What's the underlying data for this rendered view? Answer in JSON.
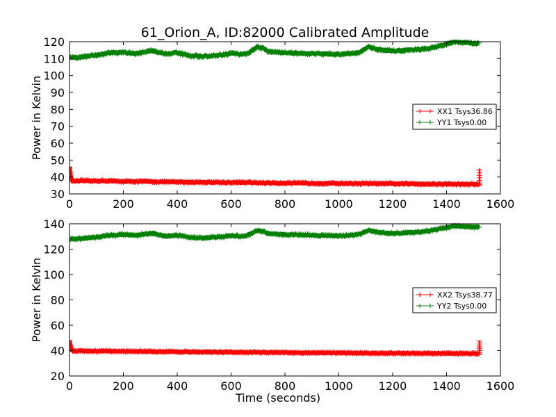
{
  "title": "61_Orion_A, ID:82000 Calibrated Amplitude",
  "colors": {
    "xx": "#ff0000",
    "yy": "#008000",
    "axis": "#000000"
  },
  "chart_data": [
    {
      "type": "line",
      "title": "61_Orion_A, ID:82000 Calibrated Amplitude",
      "xlabel": "",
      "ylabel": "Power in Kelvin",
      "xlim": [
        0,
        1600
      ],
      "ylim": [
        30,
        120
      ],
      "xticks": [
        "0",
        "200",
        "400",
        "600",
        "800",
        "1000",
        "1200",
        "1400",
        "1600"
      ],
      "yticks": [
        "30",
        "40",
        "50",
        "60",
        "70",
        "80",
        "90",
        "100",
        "110",
        "120"
      ],
      "grid": false,
      "legend_position": "center-right",
      "series": [
        {
          "name": "XX1 Tsys36.86",
          "color": "#ff0000",
          "marker": "+",
          "points": [
            [
              0,
              46
            ],
            [
              10,
              37.5
            ],
            [
              40,
              37.8
            ],
            [
              80,
              37.6
            ],
            [
              120,
              37.8
            ],
            [
              200,
              37.4
            ],
            [
              300,
              37.3
            ],
            [
              400,
              37
            ],
            [
              500,
              36.9
            ],
            [
              600,
              36.8
            ],
            [
              700,
              36.6
            ],
            [
              800,
              36.4
            ],
            [
              900,
              36.3
            ],
            [
              1000,
              36.2
            ],
            [
              1100,
              36.1
            ],
            [
              1200,
              36
            ],
            [
              1300,
              35.9
            ],
            [
              1400,
              35.8
            ],
            [
              1500,
              35.7
            ],
            [
              1520,
              35.7
            ]
          ],
          "end_spike": [
            1522,
            35,
            45
          ]
        },
        {
          "name": "YY1 Tsys0.00",
          "color": "#008000",
          "marker": "+",
          "points": [
            [
              0,
              110.5
            ],
            [
              50,
              111
            ],
            [
              100,
              112
            ],
            [
              150,
              113.5
            ],
            [
              200,
              113.5
            ],
            [
              250,
              113
            ],
            [
              280,
              114
            ],
            [
              310,
              114.5
            ],
            [
              350,
              113
            ],
            [
              400,
              113.5
            ],
            [
              450,
              111.5
            ],
            [
              500,
              111.5
            ],
            [
              550,
              112
            ],
            [
              600,
              113
            ],
            [
              620,
              113
            ],
            [
              640,
              112.5
            ],
            [
              660,
              113
            ],
            [
              680,
              115
            ],
            [
              700,
              117
            ],
            [
              720,
              116
            ],
            [
              740,
              114
            ],
            [
              800,
              113.5
            ],
            [
              900,
              113
            ],
            [
              1000,
              112.5
            ],
            [
              1050,
              113
            ],
            [
              1080,
              114
            ],
            [
              1100,
              116
            ],
            [
              1110,
              117
            ],
            [
              1140,
              115.5
            ],
            [
              1200,
              114.5
            ],
            [
              1300,
              115.5
            ],
            [
              1350,
              116.5
            ],
            [
              1400,
              118.5
            ],
            [
              1430,
              120
            ],
            [
              1460,
              119.5
            ],
            [
              1500,
              119
            ],
            [
              1520,
              118.8
            ]
          ]
        }
      ]
    },
    {
      "type": "line",
      "title": "",
      "xlabel": "Time (seconds)",
      "ylabel": "Power in Kelvin",
      "xlim": [
        0,
        1600
      ],
      "ylim": [
        20,
        140
      ],
      "xticks": [
        "0",
        "200",
        "400",
        "600",
        "800",
        "1000",
        "1200",
        "1400",
        "1600"
      ],
      "yticks": [
        "20",
        "40",
        "60",
        "80",
        "100",
        "120",
        "140"
      ],
      "grid": false,
      "legend_position": "center-right",
      "series": [
        {
          "name": "XX2 Tsys38.77",
          "color": "#ff0000",
          "marker": "+",
          "points": [
            [
              0,
              48
            ],
            [
              10,
              39.5
            ],
            [
              40,
              39.8
            ],
            [
              80,
              39.6
            ],
            [
              120,
              39.8
            ],
            [
              200,
              39.5
            ],
            [
              300,
              39.3
            ],
            [
              400,
              39.1
            ],
            [
              500,
              39
            ],
            [
              600,
              38.8
            ],
            [
              700,
              38.6
            ],
            [
              800,
              38.5
            ],
            [
              900,
              38.3
            ],
            [
              1000,
              38.2
            ],
            [
              1100,
              38.1
            ],
            [
              1200,
              38
            ],
            [
              1300,
              37.9
            ],
            [
              1400,
              37.8
            ],
            [
              1500,
              37.7
            ],
            [
              1520,
              37.7
            ]
          ],
          "end_spike": [
            1522,
            37,
            48
          ]
        },
        {
          "name": "YY2 Tsys0.00",
          "color": "#008000",
          "marker": "+",
          "points": [
            [
              0,
              128
            ],
            [
              50,
              128.5
            ],
            [
              100,
              129.5
            ],
            [
              150,
              131
            ],
            [
              200,
              131.5
            ],
            [
              250,
              131
            ],
            [
              280,
              132
            ],
            [
              310,
              132.5
            ],
            [
              350,
              130.5
            ],
            [
              400,
              131
            ],
            [
              450,
              129
            ],
            [
              500,
              129
            ],
            [
              550,
              129.5
            ],
            [
              600,
              130.5
            ],
            [
              620,
              130.5
            ],
            [
              640,
              130
            ],
            [
              660,
              131
            ],
            [
              680,
              133
            ],
            [
              700,
              135
            ],
            [
              720,
              134
            ],
            [
              740,
              132
            ],
            [
              800,
              131.5
            ],
            [
              900,
              131
            ],
            [
              1000,
              130.5
            ],
            [
              1050,
              131
            ],
            [
              1080,
              132
            ],
            [
              1100,
              134
            ],
            [
              1110,
              135
            ],
            [
              1140,
              133.5
            ],
            [
              1200,
              132.5
            ],
            [
              1300,
              133.5
            ],
            [
              1350,
              135
            ],
            [
              1400,
              137
            ],
            [
              1430,
              138.5
            ],
            [
              1460,
              138
            ],
            [
              1500,
              137.5
            ],
            [
              1520,
              137.3
            ]
          ]
        }
      ]
    }
  ]
}
